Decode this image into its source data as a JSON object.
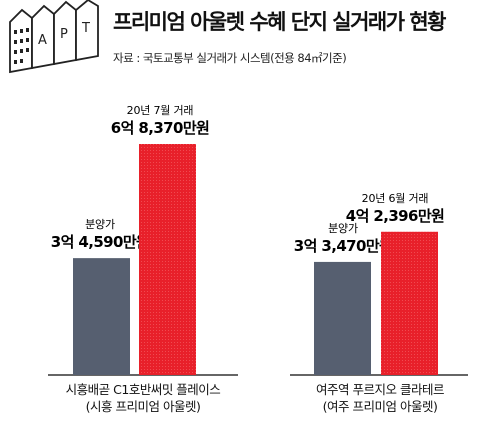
{
  "header": {
    "title": "프리미엄 아울렛  수혜 단지 실거래가 현황",
    "source": "자료 : 국토교통부 실거래가 시스템(전용 84㎡기준)",
    "logo_letters": [
      "A",
      "P",
      "T"
    ]
  },
  "chart_data": {
    "type": "bar",
    "unit": "만원",
    "groups": [
      {
        "category_line1": "시흥배곧 C1호반써밋 플레이스",
        "category_line2": "(시흥 프리미엄 아울렛)",
        "bars": [
          {
            "label_top": "분양가",
            "label_value": "3억 4,590만원",
            "value": 34590,
            "color": "#565f70"
          },
          {
            "label_top": "20년 7월 거래",
            "label_value": "6억 8,370만원",
            "value": 68370,
            "color": "#e8202a"
          }
        ]
      },
      {
        "category_line1": "여주역 푸르지오 클라테르",
        "category_line2": "(여주 프리미엄 아울렛)",
        "bars": [
          {
            "label_top": "분양가",
            "label_value": "3억 3,470만원",
            "value": 33470,
            "color": "#565f70"
          },
          {
            "label_top": "20년 6월 거래",
            "label_value": "4억 2,396만원",
            "value": 42396,
            "color": "#e8202a"
          }
        ]
      }
    ]
  }
}
